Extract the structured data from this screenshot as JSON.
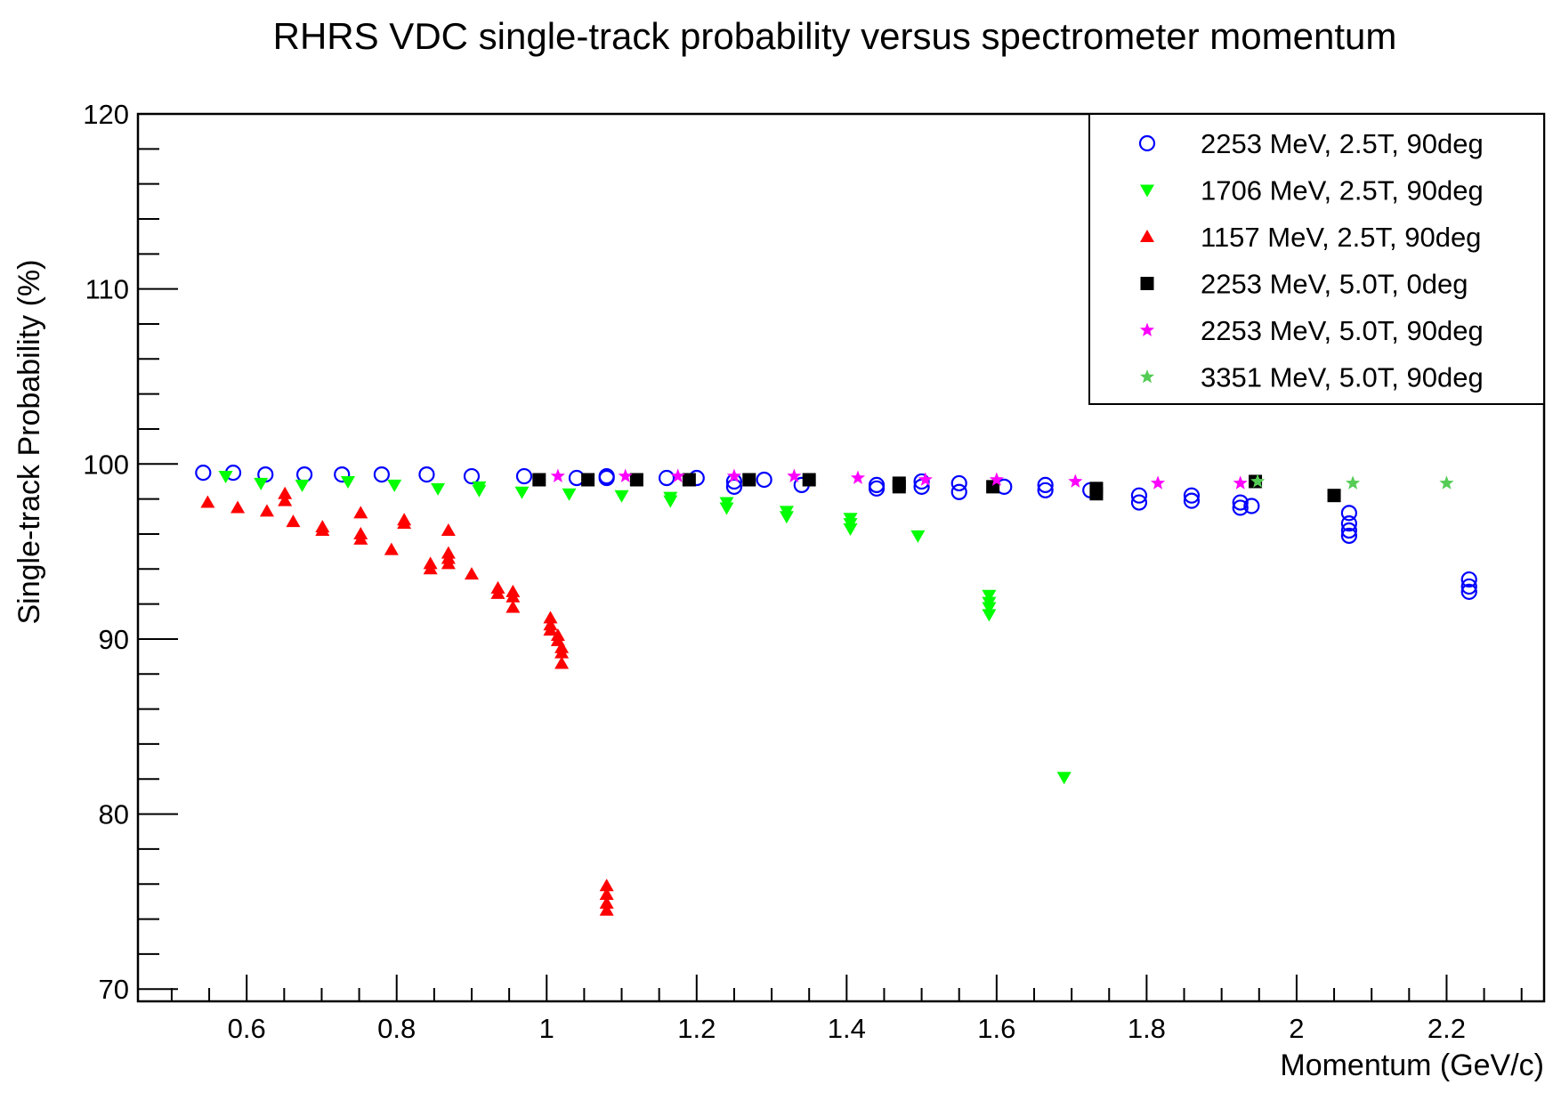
{
  "chart_data": {
    "type": "scatter",
    "title": "RHRS VDC single-track probability versus spectrometer momentum",
    "xlabel": "Momentum (GeV/c)",
    "ylabel": "Single-track Probability (%)",
    "xlim": [
      0.455,
      2.33
    ],
    "ylim": [
      69.3,
      120
    ],
    "x_ticks": [
      0.6,
      0.8,
      1,
      1.2,
      1.4,
      1.6,
      1.8,
      2,
      2.2
    ],
    "x_tick_labels": [
      "0.6",
      "0.8",
      "1",
      "1.2",
      "1.4",
      "1.6",
      "1.8",
      "2",
      "2.2"
    ],
    "y_ticks": [
      70,
      80,
      90,
      100,
      110,
      120
    ],
    "y_tick_labels": [
      "70",
      "80",
      "90",
      "100",
      "110",
      "120"
    ],
    "legend_position": "top-right",
    "series": [
      {
        "name": "2253 MeV, 2.5T, 90deg",
        "marker": "open-circle",
        "color": "#0000ff",
        "points": [
          [
            0.542,
            99.5
          ],
          [
            0.582,
            99.5
          ],
          [
            0.625,
            99.4
          ],
          [
            0.677,
            99.4
          ],
          [
            0.727,
            99.4
          ],
          [
            0.78,
            99.4
          ],
          [
            0.84,
            99.4
          ],
          [
            0.9,
            99.3
          ],
          [
            0.97,
            99.3
          ],
          [
            1.04,
            99.2
          ],
          [
            1.08,
            99.3
          ],
          [
            1.08,
            99.2
          ],
          [
            1.16,
            99.2
          ],
          [
            1.2,
            99.2
          ],
          [
            1.25,
            99.0
          ],
          [
            1.25,
            98.7
          ],
          [
            1.29,
            99.1
          ],
          [
            1.34,
            98.8
          ],
          [
            1.44,
            98.8
          ],
          [
            1.44,
            98.6
          ],
          [
            1.5,
            99.0
          ],
          [
            1.5,
            98.7
          ],
          [
            1.55,
            98.9
          ],
          [
            1.55,
            98.4
          ],
          [
            1.61,
            98.7
          ],
          [
            1.665,
            98.8
          ],
          [
            1.665,
            98.5
          ],
          [
            1.725,
            98.5
          ],
          [
            1.79,
            98.2
          ],
          [
            1.79,
            97.8
          ],
          [
            1.86,
            98.2
          ],
          [
            1.86,
            97.9
          ],
          [
            1.925,
            97.8
          ],
          [
            1.925,
            97.5
          ],
          [
            1.94,
            97.6
          ],
          [
            2.07,
            97.2
          ],
          [
            2.07,
            96.6
          ],
          [
            2.07,
            96.2
          ],
          [
            2.07,
            95.9
          ],
          [
            2.23,
            93.4
          ],
          [
            2.23,
            93.0
          ],
          [
            2.23,
            92.7
          ]
        ]
      },
      {
        "name": "1706 MeV, 2.5T, 90deg",
        "marker": "triangle-down",
        "color": "#00ff00",
        "points": [
          [
            0.572,
            99.3
          ],
          [
            0.619,
            98.9
          ],
          [
            0.674,
            98.8
          ],
          [
            0.735,
            99.0
          ],
          [
            0.797,
            98.8
          ],
          [
            0.855,
            98.6
          ],
          [
            0.91,
            98.7
          ],
          [
            0.91,
            98.5
          ],
          [
            0.967,
            98.4
          ],
          [
            1.03,
            98.3
          ],
          [
            1.1,
            98.2
          ],
          [
            1.165,
            98.1
          ],
          [
            1.165,
            97.9
          ],
          [
            1.24,
            97.8
          ],
          [
            1.24,
            97.5
          ],
          [
            1.32,
            97.3
          ],
          [
            1.32,
            97.0
          ],
          [
            1.405,
            96.9
          ],
          [
            1.405,
            96.6
          ],
          [
            1.405,
            96.3
          ],
          [
            1.495,
            95.9
          ],
          [
            1.59,
            92.5
          ],
          [
            1.59,
            92.1
          ],
          [
            1.59,
            91.8
          ],
          [
            1.59,
            91.4
          ],
          [
            1.69,
            82.1
          ]
        ]
      },
      {
        "name": "1157 MeV, 2.5T, 90deg",
        "marker": "triangle-up",
        "color": "#ff0000",
        "points": [
          [
            0.548,
            97.8
          ],
          [
            0.588,
            97.5
          ],
          [
            0.627,
            97.3
          ],
          [
            0.651,
            98.3
          ],
          [
            0.651,
            97.9
          ],
          [
            0.662,
            96.7
          ],
          [
            0.701,
            96.4
          ],
          [
            0.701,
            96.2
          ],
          [
            0.752,
            97.2
          ],
          [
            0.752,
            96.0
          ],
          [
            0.752,
            95.7
          ],
          [
            0.793,
            95.1
          ],
          [
            0.81,
            96.8
          ],
          [
            0.81,
            96.6
          ],
          [
            0.845,
            94.3
          ],
          [
            0.845,
            94.0
          ],
          [
            0.869,
            96.2
          ],
          [
            0.869,
            94.9
          ],
          [
            0.869,
            94.6
          ],
          [
            0.869,
            94.3
          ],
          [
            0.9,
            93.7
          ],
          [
            0.935,
            92.9
          ],
          [
            0.935,
            92.6
          ],
          [
            0.955,
            92.7
          ],
          [
            0.955,
            92.4
          ],
          [
            0.955,
            91.8
          ],
          [
            1.005,
            91.2
          ],
          [
            1.005,
            90.8
          ],
          [
            1.005,
            90.5
          ],
          [
            1.015,
            90.2
          ],
          [
            1.015,
            89.9
          ],
          [
            1.02,
            89.5
          ],
          [
            1.02,
            89.2
          ],
          [
            1.02,
            88.6
          ],
          [
            1.08,
            75.9
          ],
          [
            1.08,
            75.4
          ],
          [
            1.08,
            74.9
          ],
          [
            1.08,
            74.5
          ]
        ]
      },
      {
        "name": "2253 MeV, 5.0T, 0deg",
        "marker": "square",
        "color": "#000000",
        "points": [
          [
            0.99,
            99.1
          ],
          [
            1.055,
            99.1
          ],
          [
            1.12,
            99.1
          ],
          [
            1.19,
            99.1
          ],
          [
            1.27,
            99.1
          ],
          [
            1.35,
            99.1
          ],
          [
            1.47,
            98.9
          ],
          [
            1.47,
            98.7
          ],
          [
            1.595,
            98.7
          ],
          [
            1.733,
            98.6
          ],
          [
            1.733,
            98.3
          ],
          [
            1.945,
            99.0
          ],
          [
            2.05,
            98.2
          ]
        ]
      },
      {
        "name": "2253 MeV, 5.0T, 90deg",
        "marker": "star",
        "color": "#ff00ff",
        "points": [
          [
            1.015,
            99.3
          ],
          [
            1.105,
            99.3
          ],
          [
            1.175,
            99.3
          ],
          [
            1.25,
            99.3
          ],
          [
            1.33,
            99.3
          ],
          [
            1.415,
            99.2
          ],
          [
            1.505,
            99.1
          ],
          [
            1.6,
            99.1
          ],
          [
            1.705,
            99.0
          ],
          [
            1.815,
            98.9
          ],
          [
            1.925,
            98.9
          ]
        ]
      },
      {
        "name": "3351 MeV, 5.0T, 90deg",
        "marker": "star",
        "color": "#55cc55",
        "points": [
          [
            1.948,
            99.0
          ],
          [
            2.075,
            98.9
          ],
          [
            2.2,
            98.9
          ]
        ]
      }
    ]
  }
}
